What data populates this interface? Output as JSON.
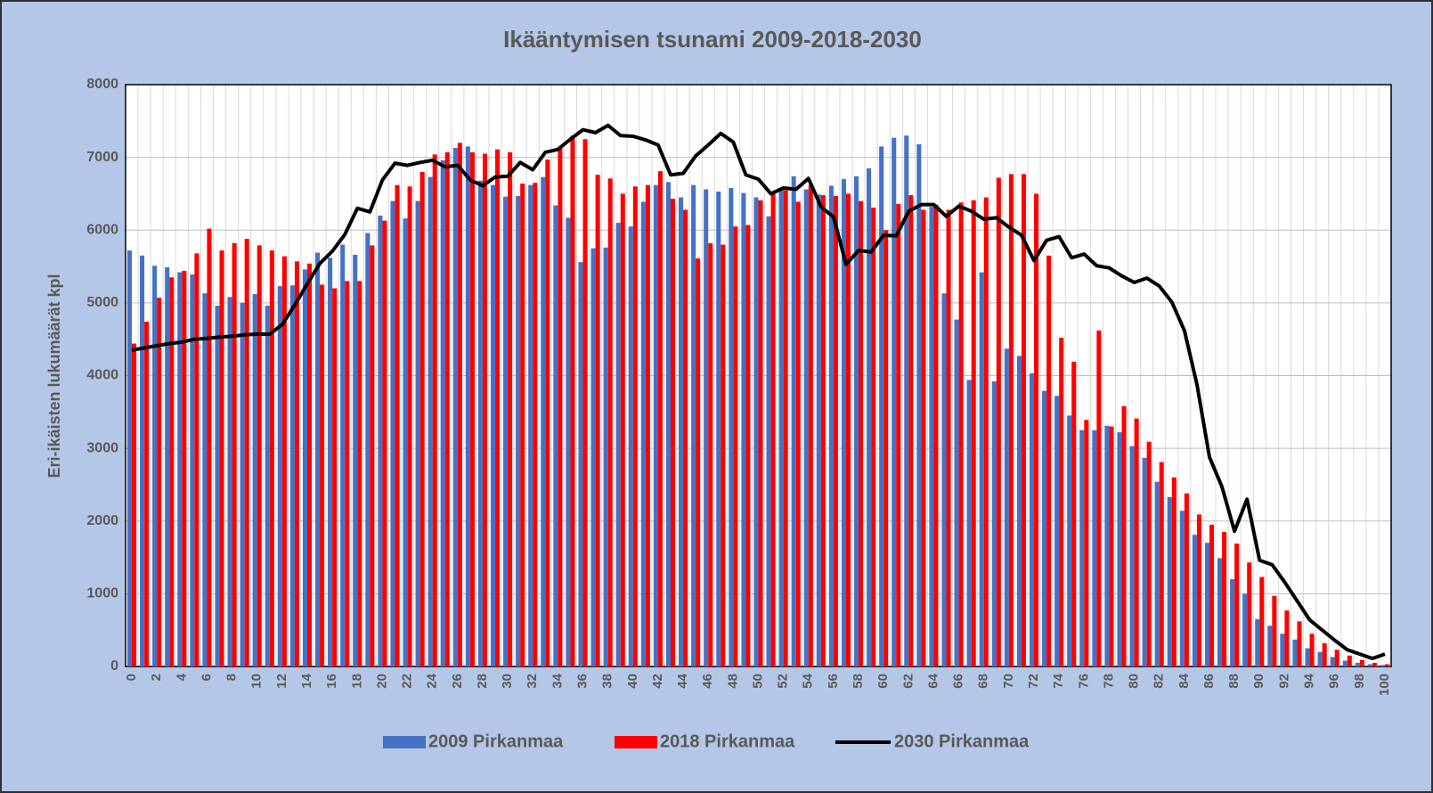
{
  "chart_data": {
    "type": "bar-line",
    "title": "Ikääntymisen tsunami 2009-2018-2030",
    "y_label": "Eri-ikäisten lukumäärät kpl",
    "categories": [
      "0",
      null,
      "2",
      null,
      "4",
      null,
      "6",
      null,
      "8",
      null,
      "10",
      null,
      "12",
      null,
      "14",
      null,
      "16",
      null,
      "18",
      null,
      "20",
      null,
      "22",
      null,
      "24",
      null,
      "26",
      null,
      "28",
      null,
      "30",
      null,
      "32",
      null,
      "34",
      null,
      "36",
      null,
      "38",
      null,
      "40",
      null,
      "42",
      null,
      "44",
      null,
      "46",
      null,
      "48",
      null,
      "50",
      null,
      "52",
      null,
      "54",
      null,
      "56",
      null,
      "58",
      null,
      "60",
      null,
      "62",
      null,
      "64",
      null,
      "66",
      null,
      "68",
      null,
      "70",
      null,
      "72",
      null,
      "74",
      null,
      "76",
      null,
      "78",
      null,
      "80",
      null,
      "82",
      null,
      "84",
      null,
      "86",
      null,
      "88",
      null,
      "90",
      null,
      "92",
      null,
      "94",
      null,
      "96",
      null,
      "98",
      null,
      "100"
    ],
    "series": [
      {
        "name": "2009 Pirkanmaa",
        "kind": "bar",
        "color": "#4472c4",
        "values": [
          5720,
          5650,
          5510,
          5490,
          5420,
          5390,
          5130,
          4960,
          5080,
          5000,
          5120,
          4960,
          5230,
          5240,
          5460,
          5690,
          5620,
          5800,
          5660,
          5960,
          6200,
          6400,
          6160,
          6400,
          6730,
          6960,
          7130,
          7150,
          6680,
          6620,
          6460,
          6470,
          6620,
          6730,
          6340,
          6170,
          5560,
          5750,
          5760,
          6100,
          6050,
          6390,
          6620,
          6660,
          6450,
          6620,
          6560,
          6530,
          6580,
          6510,
          6450,
          6190,
          6560,
          6740,
          6560,
          6490,
          6610,
          6700,
          6740,
          6850,
          7150,
          7270,
          7300,
          7180,
          6320,
          5130,
          4770,
          3940,
          5420,
          3920,
          4370,
          4270,
          4030,
          3790,
          3720,
          3450,
          3250,
          3250,
          3310,
          3220,
          3030,
          2870,
          2540,
          2330,
          2140,
          1810,
          1700,
          1490,
          1200,
          1000,
          650,
          560,
          450,
          370,
          250,
          200,
          130,
          80,
          50,
          30,
          20
        ]
      },
      {
        "name": "2018 Pirkanmaa",
        "kind": "bar",
        "color": "#ff0000",
        "values": [
          4440,
          4740,
          5070,
          5350,
          5440,
          5680,
          6020,
          5720,
          5820,
          5880,
          5790,
          5720,
          5640,
          5570,
          5540,
          5250,
          5200,
          5300,
          5300,
          5790,
          6130,
          6620,
          6600,
          6800,
          7040,
          7070,
          7200,
          7070,
          7050,
          7110,
          7070,
          6640,
          6650,
          6970,
          7130,
          7300,
          7250,
          6760,
          6710,
          6500,
          6600,
          6620,
          6810,
          6430,
          6280,
          5610,
          5820,
          5800,
          6050,
          6070,
          6410,
          6500,
          6550,
          6390,
          6620,
          6480,
          6470,
          6500,
          6400,
          6310,
          6000,
          6360,
          6480,
          6280,
          6350,
          6280,
          6380,
          6410,
          6450,
          6720,
          6770,
          6770,
          6500,
          5650,
          4520,
          4190,
          3390,
          4620,
          3300,
          3580,
          3410,
          3090,
          2810,
          2600,
          2380,
          2090,
          1950,
          1850,
          1690,
          1430,
          1230,
          970,
          770,
          620,
          450,
          320,
          230,
          150,
          90,
          50,
          30
        ]
      },
      {
        "name": "2030 Pirkanmaa",
        "kind": "line",
        "color": "#000000",
        "values": [
          4350,
          4380,
          4410,
          4440,
          4460,
          4500,
          4510,
          4530,
          4540,
          4560,
          4570,
          4570,
          4700,
          4970,
          5260,
          5540,
          5710,
          5940,
          6300,
          6250,
          6690,
          6920,
          6890,
          6930,
          6960,
          6870,
          6890,
          6690,
          6610,
          6730,
          6740,
          6930,
          6830,
          7070,
          7110,
          7250,
          7380,
          7340,
          7440,
          7300,
          7290,
          7240,
          7170,
          6760,
          6780,
          7020,
          7170,
          7330,
          7210,
          6760,
          6700,
          6500,
          6580,
          6560,
          6710,
          6320,
          6180,
          5530,
          5720,
          5700,
          5930,
          5920,
          6260,
          6350,
          6350,
          6190,
          6330,
          6260,
          6150,
          6170,
          6040,
          5930,
          5580,
          5860,
          5910,
          5620,
          5670,
          5510,
          5480,
          5370,
          5280,
          5340,
          5230,
          5010,
          4620,
          3880,
          2880,
          2470,
          1860,
          2300,
          1460,
          1400,
          1160,
          900,
          640,
          500,
          360,
          230,
          170,
          110,
          170
        ]
      }
    ],
    "ylim": [
      0,
      8000
    ],
    "yticks": [
      0,
      1000,
      2000,
      3000,
      4000,
      5000,
      6000,
      7000,
      8000
    ],
    "grid": true,
    "legend": "bottom"
  }
}
